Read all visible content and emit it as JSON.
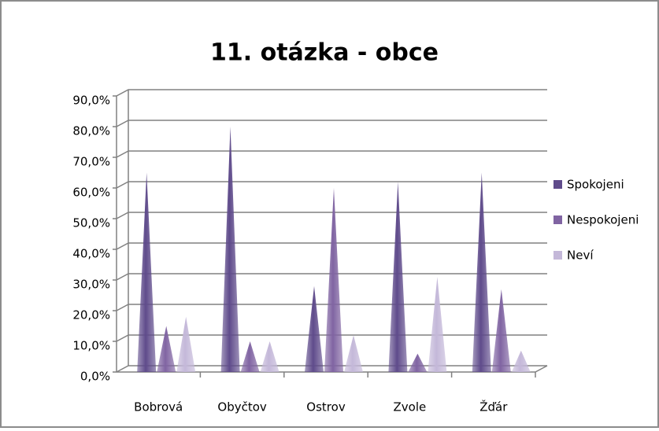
{
  "chart_data": {
    "type": "cone",
    "title": "11. otázka - obce",
    "categories": [
      "Bobrová",
      "Obyčtov",
      "Ostrov",
      "Zvole",
      "Žďár"
    ],
    "series": [
      {
        "name": "Spokojeni",
        "color": "#5f4b8b",
        "values": [
          65,
          80,
          28,
          62,
          65
        ]
      },
      {
        "name": "Nespokojeni",
        "color": "#8064a2",
        "values": [
          15,
          10,
          60,
          6,
          27
        ]
      },
      {
        "name": "Neví",
        "color": "#c4b8d9",
        "values": [
          18,
          10,
          12,
          31,
          7
        ]
      }
    ],
    "ylim": [
      0,
      90
    ],
    "yticks": [
      {
        "value": 0,
        "label": "0,0%"
      },
      {
        "value": 10,
        "label": "10,0%"
      },
      {
        "value": 20,
        "label": "20,0%"
      },
      {
        "value": 30,
        "label": "30,0%"
      },
      {
        "value": 40,
        "label": "40,0%"
      },
      {
        "value": 50,
        "label": "50,0%"
      },
      {
        "value": 60,
        "label": "60,0%"
      },
      {
        "value": 70,
        "label": "70,0%"
      },
      {
        "value": 80,
        "label": "80,0%"
      },
      {
        "value": 90,
        "label": "90,0%"
      }
    ],
    "grid": true,
    "legend": "right"
  }
}
